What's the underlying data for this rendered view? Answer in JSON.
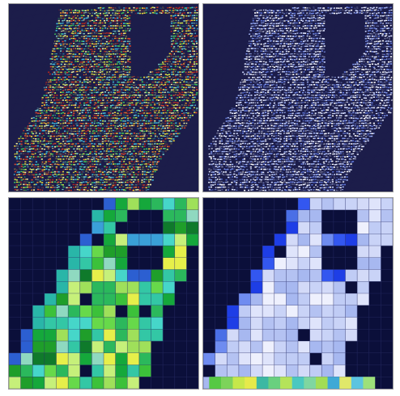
{
  "figure": {
    "panels": [
      {
        "id": "top-left",
        "kind": "building-density-map",
        "colormap": "jet",
        "background": "#1c1d4a"
      },
      {
        "id": "top-right",
        "kind": "building-density-map",
        "colormap": "blue-white",
        "background": "#1c1d4a"
      },
      {
        "id": "bottom-left",
        "kind": "grid-heatmap",
        "colormap": "green-yellow-cyan",
        "background": "#0b0f3a"
      },
      {
        "id": "bottom-right",
        "kind": "grid-heatmap",
        "colormap": "blue-lavender",
        "background": "#0b0f3a"
      }
    ]
  }
}
